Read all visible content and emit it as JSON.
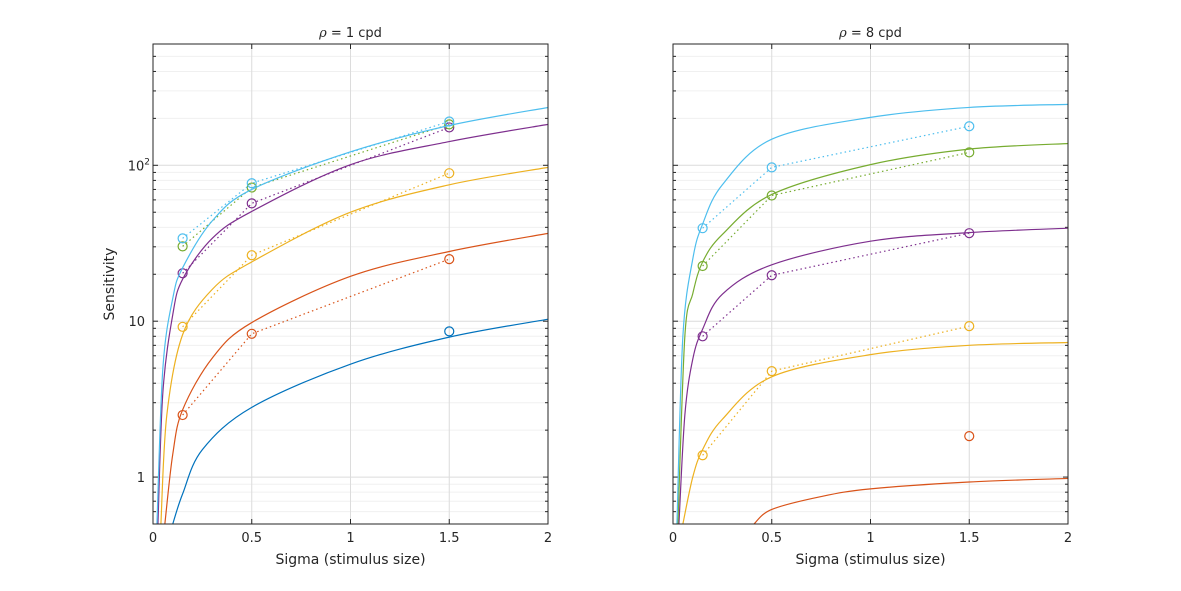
{
  "chart_data": [
    {
      "type": "line",
      "title_symbol": "ρ",
      "title_rest": " = 1 cpd",
      "xlabel": "Sigma (stimulus size)",
      "ylabel": "Sensitivity",
      "xlim": [
        0,
        2
      ],
      "ylim": [
        0.5,
        600
      ],
      "yscale": "log",
      "xticks": [
        0,
        0.5,
        1,
        1.5,
        2
      ],
      "xtick_labels": [
        "0",
        "0.5",
        "1",
        "1.5",
        "2"
      ],
      "yticks": [
        1,
        10,
        100
      ],
      "ytick_labels": [
        {
          "base": "1",
          "exp": ""
        },
        {
          "base": "10",
          "exp": ""
        },
        {
          "base": "10",
          "exp": "2"
        }
      ],
      "grid": true,
      "series": [
        {
          "name": "blue",
          "color": "#0072BD",
          "fit": [
            [
              0.1,
              0.5
            ],
            [
              0.15,
              0.78
            ],
            [
              0.25,
              1.5
            ],
            [
              0.5,
              2.8
            ],
            [
              1,
              5.3
            ],
            [
              1.5,
              7.9
            ],
            [
              2,
              10.3
            ]
          ],
          "points": [
            [
              1.5,
              8.6
            ]
          ],
          "connected": false
        },
        {
          "name": "red",
          "color": "#D95319",
          "fit": [
            [
              0.06,
              0.5
            ],
            [
              0.1,
              1.4
            ],
            [
              0.15,
              2.7
            ],
            [
              0.3,
              5.8
            ],
            [
              0.5,
              9.8
            ],
            [
              1,
              19.4
            ],
            [
              1.5,
              28
            ],
            [
              2,
              36.6
            ]
          ],
          "points": [
            [
              0.15,
              2.5
            ],
            [
              0.5,
              8.3
            ],
            [
              1.5,
              25
            ]
          ],
          "connected": true
        },
        {
          "name": "yellow",
          "color": "#EDB120",
          "fit": [
            [
              0.04,
              0.5
            ],
            [
              0.07,
              2.5
            ],
            [
              0.15,
              8.2
            ],
            [
              0.3,
              16
            ],
            [
              0.5,
              24
            ],
            [
              1,
              50
            ],
            [
              1.5,
              75
            ],
            [
              2,
              97
            ]
          ],
          "points": [
            [
              0.15,
              9.2
            ],
            [
              0.5,
              26.5
            ],
            [
              1.5,
              89
            ]
          ],
          "connected": true
        },
        {
          "name": "purple",
          "color": "#7E2F8E",
          "fit": [
            [
              0.025,
              0.5
            ],
            [
              0.05,
              3.5
            ],
            [
              0.1,
              11
            ],
            [
              0.15,
              18.6
            ],
            [
              0.3,
              34
            ],
            [
              0.5,
              50.6
            ],
            [
              1,
              101
            ],
            [
              1.5,
              142
            ],
            [
              2,
              183
            ]
          ],
          "points": [
            [
              0.15,
              20.3
            ],
            [
              0.5,
              57
            ],
            [
              1.5,
              175
            ]
          ],
          "connected": true
        },
        {
          "name": "green",
          "color": "#77AC30",
          "fit": [],
          "points": [
            [
              0.15,
              30.2
            ],
            [
              0.5,
              72
            ],
            [
              1.5,
              183
            ]
          ],
          "connected": true
        },
        {
          "name": "cyan",
          "color": "#4DBEEE",
          "fit": [
            [
              0.02,
              0.5
            ],
            [
              0.05,
              5
            ],
            [
              0.1,
              14
            ],
            [
              0.15,
              22
            ],
            [
              0.3,
              44
            ],
            [
              0.5,
              70
            ],
            [
              1,
              122
            ],
            [
              1.5,
              180
            ],
            [
              2,
              235
            ]
          ],
          "points": [
            [
              0.15,
              34
            ],
            [
              0.5,
              76.7
            ],
            [
              1.5,
              191
            ]
          ],
          "connected": true
        }
      ]
    },
    {
      "type": "line",
      "title_symbol": "ρ",
      "title_rest": " = 8 cpd",
      "xlabel": "Sigma (stimulus size)",
      "ylabel": "",
      "xlim": [
        0,
        2
      ],
      "ylim": [
        0.5,
        600
      ],
      "yscale": "log",
      "xticks": [
        0,
        0.5,
        1,
        1.5,
        2
      ],
      "xtick_labels": [
        "0",
        "0.5",
        "1",
        "1.5",
        "2"
      ],
      "yticks": [
        1,
        10,
        100
      ],
      "ytick_labels": [],
      "grid": true,
      "series": [
        {
          "name": "red",
          "color": "#D95319",
          "fit": [
            [
              0.41,
              0.5
            ],
            [
              0.5,
              0.62
            ],
            [
              0.75,
              0.75
            ],
            [
              1,
              0.84
            ],
            [
              1.5,
              0.93
            ],
            [
              2,
              0.98
            ]
          ],
          "points": [
            [
              1.5,
              1.83
            ]
          ],
          "connected": false
        },
        {
          "name": "yellow",
          "color": "#EDB120",
          "fit": [
            [
              0.05,
              0.5
            ],
            [
              0.1,
              1.0
            ],
            [
              0.15,
              1.5
            ],
            [
              0.25,
              2.35
            ],
            [
              0.5,
              4.4
            ],
            [
              1,
              6.1
            ],
            [
              1.5,
              7.0
            ],
            [
              2,
              7.3
            ]
          ],
          "points": [
            [
              0.15,
              1.38
            ],
            [
              0.5,
              4.78
            ],
            [
              1.5,
              9.3
            ]
          ],
          "connected": true
        },
        {
          "name": "purple",
          "color": "#7E2F8E",
          "fit": [
            [
              0.03,
              0.5
            ],
            [
              0.06,
              2.5
            ],
            [
              0.1,
              5.7
            ],
            [
              0.15,
              8.9
            ],
            [
              0.25,
              14.9
            ],
            [
              0.5,
              23
            ],
            [
              1,
              32.6
            ],
            [
              1.5,
              37
            ],
            [
              2,
              39.5
            ]
          ],
          "points": [
            [
              0.15,
              8.0
            ],
            [
              0.5,
              19.7
            ],
            [
              1.5,
              36.7
            ]
          ],
          "connected": true
        },
        {
          "name": "green",
          "color": "#77AC30",
          "fit": [
            [
              0.025,
              0.5
            ],
            [
              0.06,
              8
            ],
            [
              0.1,
              15
            ],
            [
              0.15,
              24
            ],
            [
              0.25,
              36
            ],
            [
              0.5,
              65
            ],
            [
              1,
              101
            ],
            [
              1.5,
              127
            ],
            [
              2,
              138
            ]
          ],
          "points": [
            [
              0.15,
              22.6
            ],
            [
              0.5,
              64
            ],
            [
              1.5,
              121
            ]
          ],
          "connected": true
        },
        {
          "name": "cyan",
          "color": "#4DBEEE",
          "fit": [
            [
              0.02,
              0.5
            ],
            [
              0.05,
              8
            ],
            [
              0.1,
              25
            ],
            [
              0.15,
              42
            ],
            [
              0.25,
              75
            ],
            [
              0.5,
              147
            ],
            [
              1,
              203
            ],
            [
              1.5,
              235
            ],
            [
              2,
              246
            ]
          ],
          "points": [
            [
              0.15,
              39.5
            ],
            [
              0.5,
              97
            ],
            [
              1.5,
              178
            ]
          ],
          "connected": true
        }
      ]
    }
  ]
}
